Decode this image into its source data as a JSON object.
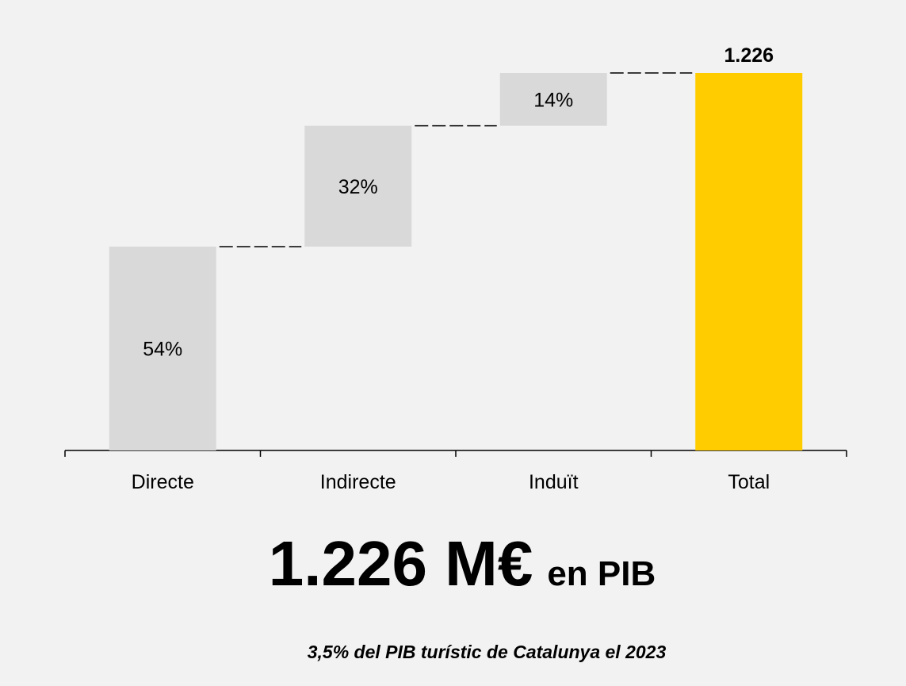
{
  "chart_data": {
    "type": "waterfall",
    "categories": [
      "Directe",
      "Indirecte",
      "Induït"
    ],
    "values": [
      54,
      32,
      14
    ],
    "value_labels": [
      "54%",
      "32%",
      "14%"
    ],
    "color": "#d9d9d9",
    "total": {
      "name": "Total",
      "value": 1226,
      "value_label": "1.226",
      "color": "#ffcc00"
    },
    "headline": {
      "main": "1.226 M€",
      "suffix": "en PIB"
    },
    "note": "3,5% del PIB turístic de Catalunya el 2023"
  }
}
